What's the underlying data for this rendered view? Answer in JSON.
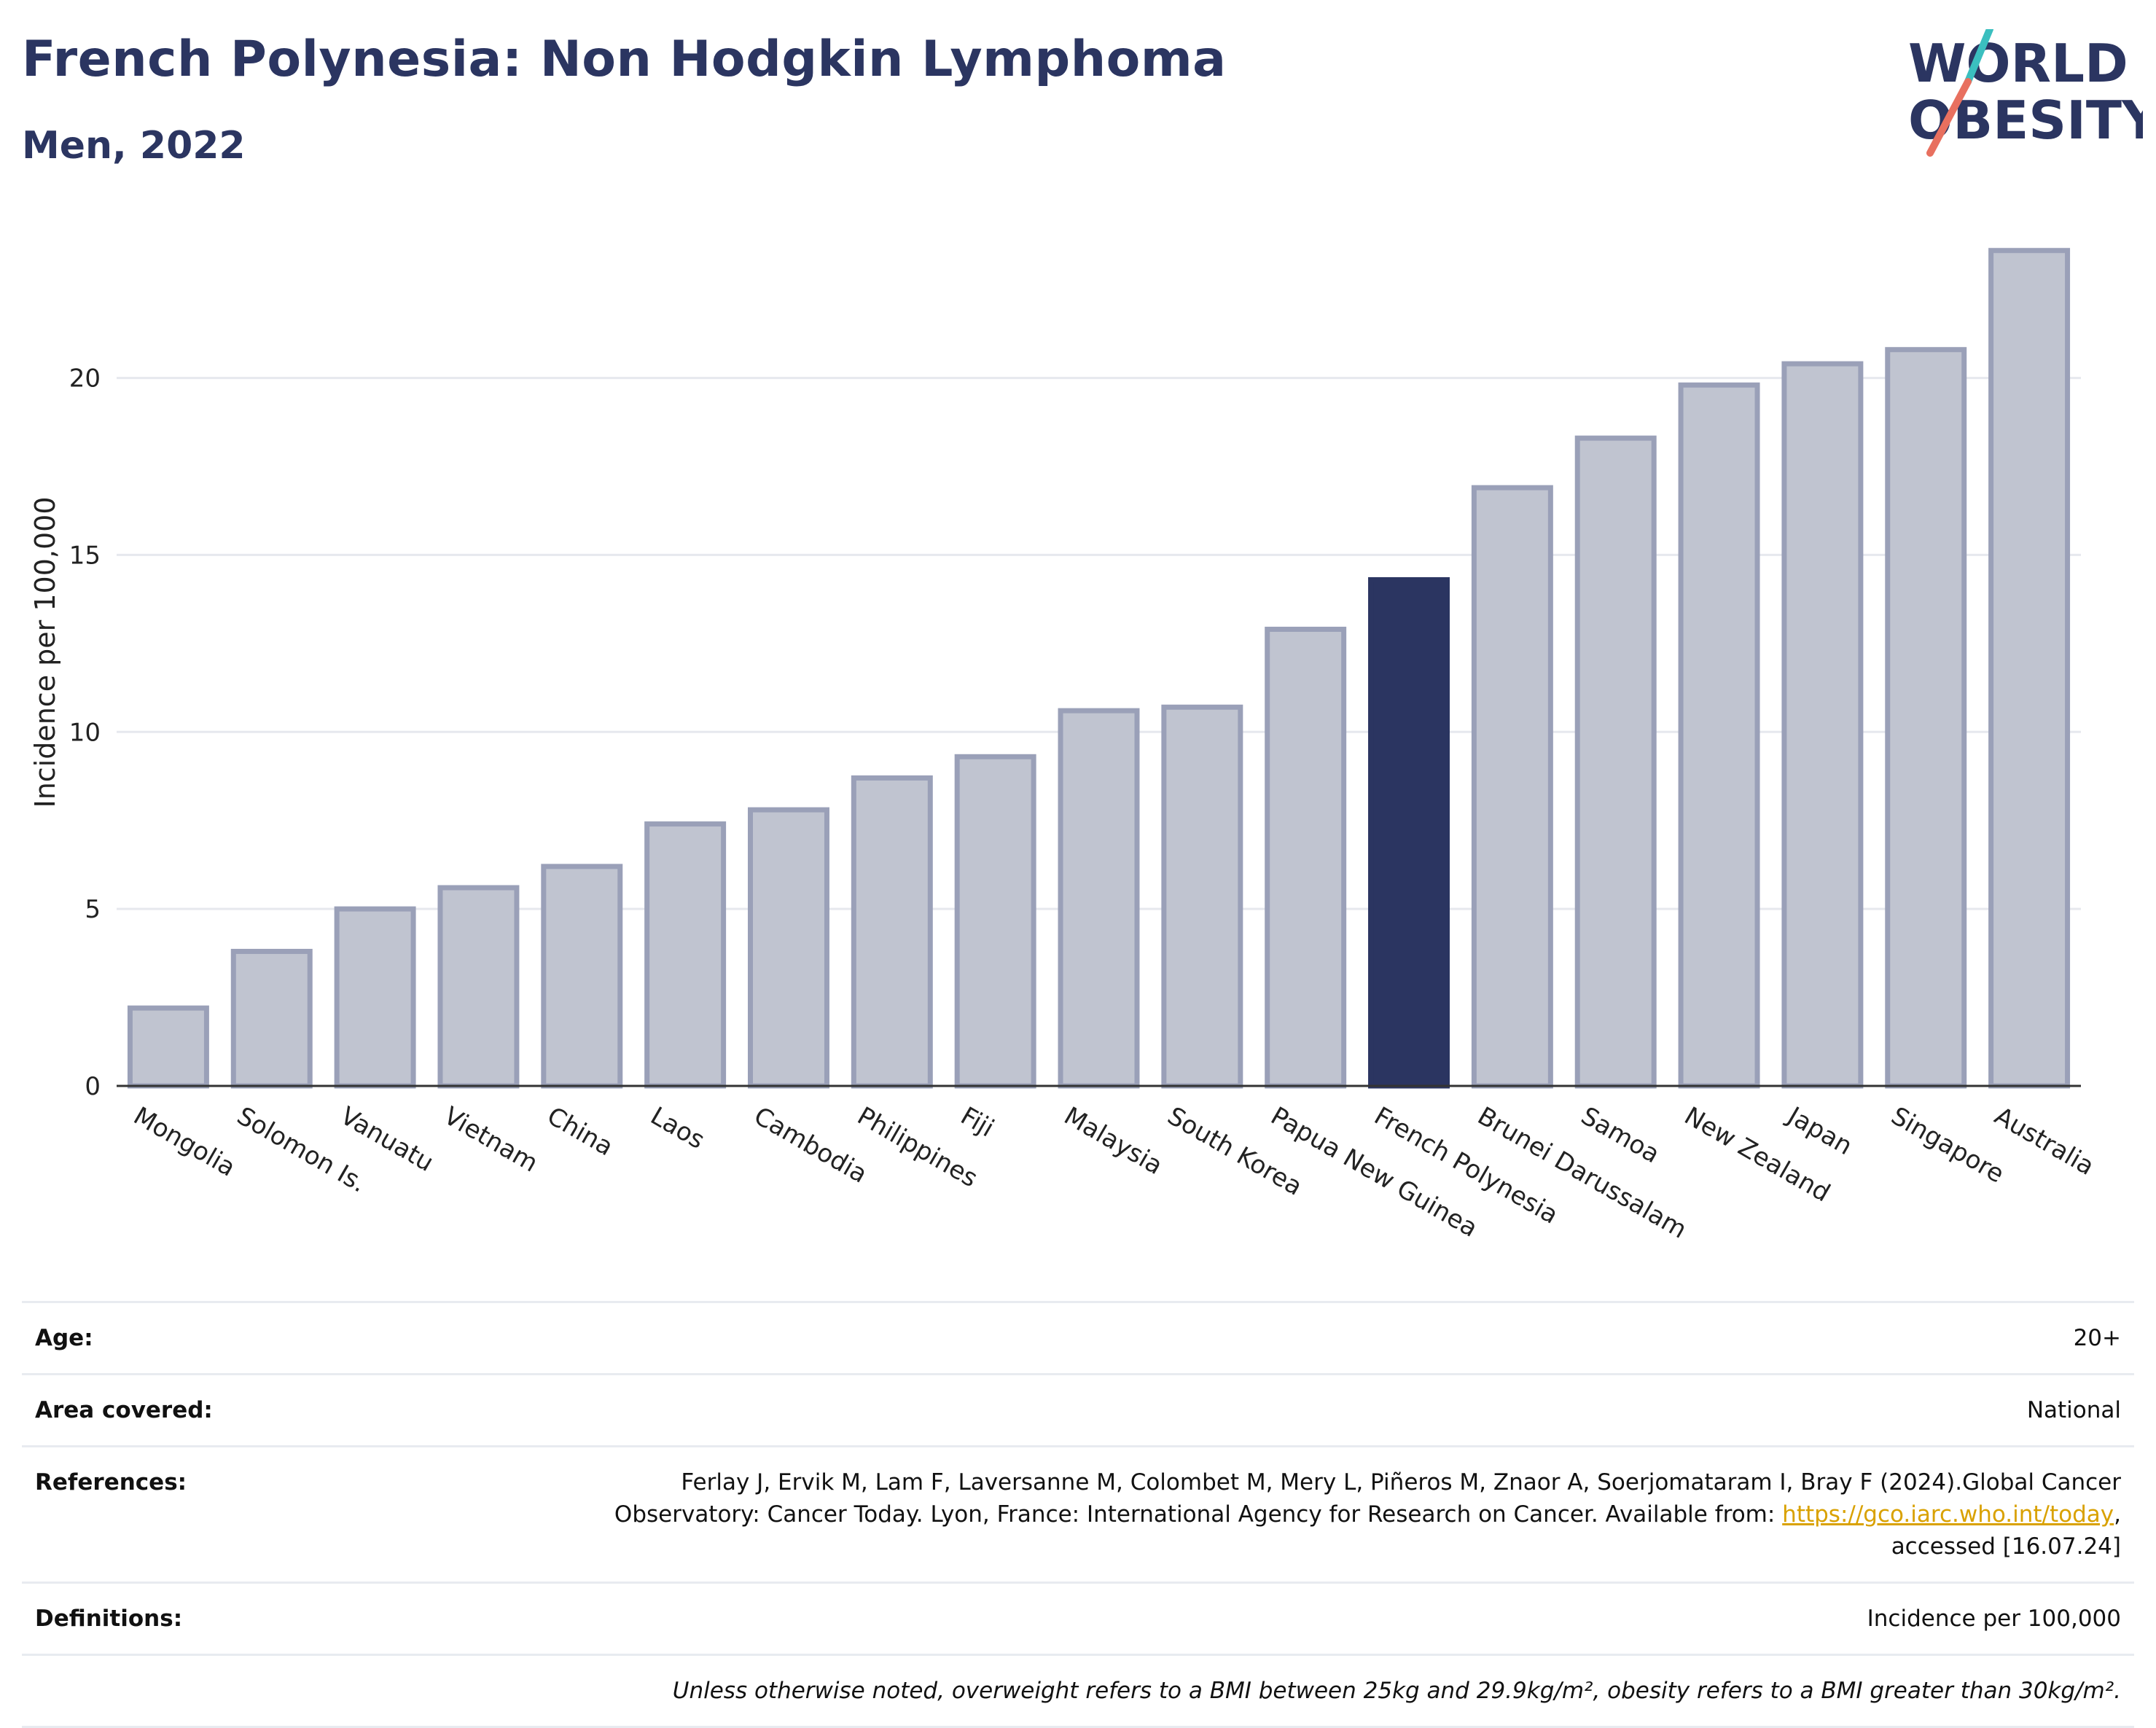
{
  "header": {
    "title": "French Polynesia: Non Hodgkin Lymphoma",
    "subtitle": "Men, 2022"
  },
  "logo": {
    "line1": "WORLD",
    "line2": "OBESITY",
    "accent_colors": [
      "#3bbfbf",
      "#e8705f"
    ]
  },
  "chart_data": {
    "type": "bar",
    "ylabel": "Incidence per 100,000",
    "xlabel": "",
    "ylim": [
      0,
      24.5
    ],
    "yticks": [
      0,
      5,
      10,
      15,
      20
    ],
    "grid": true,
    "highlight": "French Polynesia",
    "colors": {
      "bar": "#2b3561",
      "bar_fill_muted": "#c0c4d0",
      "bar_stroke_muted": "#9aa0b8"
    },
    "categories": [
      "Mongolia",
      "Solomon Is.",
      "Vanuatu",
      "Vietnam",
      "China",
      "Laos",
      "Cambodia",
      "Philippines",
      "Fiji",
      "Malaysia",
      "South Korea",
      "Papua New Guinea",
      "French Polynesia",
      "Brunei Darussalam",
      "Samoa",
      "New Zealand",
      "Japan",
      "Singapore",
      "Australia"
    ],
    "values": [
      2.2,
      3.8,
      5.0,
      5.6,
      6.2,
      7.4,
      7.8,
      8.7,
      9.3,
      10.6,
      10.7,
      12.9,
      14.3,
      16.9,
      18.3,
      19.8,
      20.4,
      20.8,
      23.6
    ]
  },
  "info": {
    "age_label": "Age:",
    "age_value": "20+",
    "area_label": "Area covered:",
    "area_value": "National",
    "references_label": "References:",
    "references_line1": "Ferlay J, Ervik M, Lam F, Laversanne M, Colombet M, Mery L, Piñeros M, Znaor A, Soerjomataram I, Bray F (2024).Global Cancer",
    "references_line2": "Observatory: Cancer Today. Lyon, France: International Agency for Research on Cancer. Available from: ",
    "references_link": "https://gco.iarc.who.int/today",
    "references_line2_end": ",",
    "references_line3": "accessed [16.07.24]",
    "definitions_label": "Definitions:",
    "definitions_value": "Incidence per 100,000",
    "note": "Unless otherwise noted, overweight refers to a BMI between 25kg and 29.9kg/m², obesity refers to a BMI greater than 30kg/m²."
  }
}
